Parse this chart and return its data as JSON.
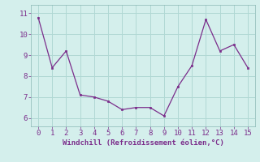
{
  "x": [
    0,
    1,
    2,
    3,
    4,
    5,
    6,
    7,
    8,
    9,
    10,
    11,
    12,
    13,
    14,
    15
  ],
  "y": [
    10.8,
    8.4,
    9.2,
    7.1,
    7.0,
    6.8,
    6.4,
    6.5,
    6.5,
    6.1,
    7.5,
    8.5,
    10.7,
    9.2,
    9.5,
    8.4
  ],
  "line_color": "#7b2d8b",
  "marker_color": "#7b2d8b",
  "bg_color": "#d4efec",
  "grid_color": "#b0d8d4",
  "xlabel": "Windchill (Refroidissement éolien,°C)",
  "xlabel_color": "#7b2d8b",
  "tick_color": "#7b2d8b",
  "ylim": [
    5.6,
    11.4
  ],
  "xlim": [
    -0.5,
    15.5
  ],
  "yticks": [
    6,
    7,
    8,
    9,
    10,
    11
  ],
  "xticks": [
    0,
    1,
    2,
    3,
    4,
    5,
    6,
    7,
    8,
    9,
    10,
    11,
    12,
    13,
    14,
    15
  ],
  "figsize": [
    3.2,
    2.0
  ],
  "dpi": 100
}
